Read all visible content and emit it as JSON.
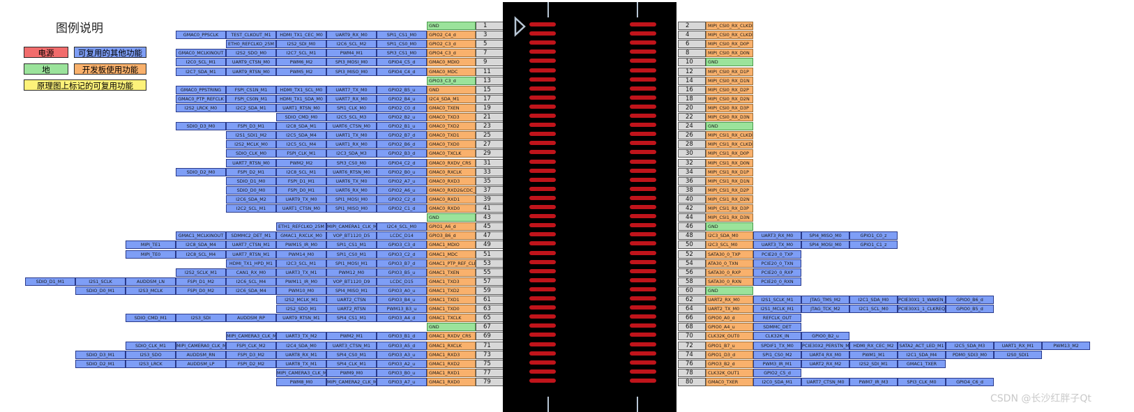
{
  "legend": {
    "title": "图例说明",
    "items": [
      {
        "label": "电源",
        "color": "#f16c6c"
      },
      {
        "label": "可复用的其他功能",
        "color": "#7e9ef6"
      },
      {
        "label": "地",
        "color": "#9be39b"
      },
      {
        "label": "开发板使用功能",
        "color": "#f9b16c"
      },
      {
        "label": "原理图上标记的可复用功能",
        "color": "#fdf27a"
      }
    ]
  },
  "watermark": "CSDN @长沙红胖子Qt",
  "odd_pins": [
    {
      "pin": "1",
      "own": "GND",
      "own_type": "green",
      "funcs": []
    },
    {
      "pin": "3",
      "own": "GPIO2_C4_d",
      "own_type": "orange",
      "funcs": [
        "SPI1_CS1_M0",
        "UART9_RX_M0",
        "HDMI_TX1_CEC_M0",
        "TEST_CLKOUT_M1",
        "GMAC0_PPSCLK"
      ]
    },
    {
      "pin": "5",
      "own": "GPIO2_C3_d",
      "own_type": "orange",
      "funcs": [
        "SPI1_CS0_M0",
        "I2C6_SCL_M2",
        "I2S2_SDI_M0",
        "ETH0_REFCLKO_25M"
      ]
    },
    {
      "pin": "7",
      "own": "GPIO4_C3_d",
      "own_type": "orange",
      "funcs": [
        "SPI3_CS1_M0",
        "PWM4_M1",
        "I2C7_SCL_M1",
        "I2S2_SDO_M0",
        "GMAC0_MCLKINOUT"
      ]
    },
    {
      "pin": "9",
      "own": "GMAC0_MDIO",
      "own_type": "orange",
      "funcs": [
        "GPIO4_C5_d",
        "SPI3_MOSI_M0",
        "PWM6_M2",
        "UART9_CTSN_M0",
        "I2C0_SCL_M1"
      ]
    },
    {
      "pin": "11",
      "own": "GMAC0_MDC",
      "own_type": "orange",
      "funcs": [
        "GPIO4_C4_d",
        "SPI3_MISO_M0",
        "PWM5_M2",
        "UART9_RTSN_M0",
        "I2C7_SDA_M1"
      ]
    },
    {
      "pin": "13",
      "own": "GPIO3_C3_d",
      "own_type": "green",
      "funcs": []
    },
    {
      "pin": "15",
      "own": "GND",
      "own_type": "orange",
      "funcs": [
        "GPIO2_B5_u",
        "UART7_TX_M0",
        "HDMI_TX1_SCL_M0",
        "FSPI_CS1N_M1",
        "GMAC0_PPSTRING"
      ]
    },
    {
      "pin": "17",
      "own": "I2C4_SDA_M1",
      "own_type": "orange",
      "funcs": [
        "GPIO2_B4_u",
        "UART7_RX_M0",
        "HDMI_TX1_SDA_M0",
        "FSPI_CS0N_M1",
        "GMAC0_PTP_REFCLK"
      ]
    },
    {
      "pin": "19",
      "own": "GMAC0_TXEN",
      "own_type": "orange",
      "funcs": [
        "GPIO2_C0_d",
        "SPI1_CLK_M0",
        "UART1_RTSN_M0",
        "I2C2_SDA_M1",
        "I2S2_LRCK_M0"
      ]
    },
    {
      "pin": "21",
      "own": "GMAC0_TXD3",
      "own_type": "orange",
      "funcs": [
        "GPIO2_B2_u",
        "I2C5_SCL_M3",
        "SDIO_CMD_M0"
      ]
    },
    {
      "pin": "23",
      "own": "GMAC0_TXD2",
      "own_type": "orange",
      "funcs": [
        "GPIO2_B1_u",
        "UART6_CTSN_M0",
        "I2C8_SDA_M1",
        "FSPI_D3_M1",
        "SDIO_D3_M0"
      ]
    },
    {
      "pin": "25",
      "own": "GMAC0_TXD1",
      "own_type": "orange",
      "funcs": [
        "GPIO2_B7_d",
        "UART1_TX_M0",
        "I2C5_SDA_M4",
        "I2S1_SDI1_M2"
      ]
    },
    {
      "pin": "27",
      "own": "GMAC0_TXD0",
      "own_type": "orange",
      "funcs": [
        "GPIO2_B6_d",
        "UART1_RX_M0",
        "I2C5_SCL_M4",
        "I2S2_MCLK_M0"
      ]
    },
    {
      "pin": "29",
      "own": "GMAC0_TXCLK",
      "own_type": "orange",
      "funcs": [
        "GPIO2_B3_d",
        "I2C3_SDA_M3",
        "FSPI_CLK_M1",
        "SDIO_CLK_M0"
      ]
    },
    {
      "pin": "31",
      "own": "GMAC0_RXDV_CRS",
      "own_type": "orange",
      "funcs": [
        "GPIO4_C2_d",
        "SPI3_CS0_M0",
        "PWM2_M2",
        "UART7_RTSN_M0"
      ]
    },
    {
      "pin": "33",
      "own": "GMAC0_RXCLK",
      "own_type": "orange",
      "funcs": [
        "GPIO2_B0_u",
        "UART6_RTSN_M0",
        "I2C8_SCL_M1",
        "FSPI_D2_M1",
        "SDIO_D2_M0"
      ]
    },
    {
      "pin": "35",
      "own": "GMAC0_RXD3",
      "own_type": "orange",
      "funcs": [
        "GPIO2_A7_u",
        "UART6_TX_M0",
        "FSPI_D1_M1",
        "SDIO_D1_M0"
      ]
    },
    {
      "pin": "37",
      "own": "GMAC0_RXD2&CDC_D10",
      "own_type": "orange",
      "funcs": [
        "GPIO2_A6_u",
        "UART6_RX_M0",
        "FSPI_D0_M1",
        "SDIO_D0_M0"
      ]
    },
    {
      "pin": "39",
      "own": "GMAC0_RXD1",
      "own_type": "orange",
      "funcs": [
        "GPIO2_C2_d",
        "SPI1_MOSI_M0",
        "UART9_TX_M0",
        "I2C6_SDA_M2"
      ]
    },
    {
      "pin": "41",
      "own": "GMAC0_RXD0",
      "own_type": "orange",
      "funcs": [
        "GPIO2_C1_d",
        "SPI1_MISO_M0",
        "UART1_CTSN_M0",
        "I2C2_SCL_M1"
      ]
    },
    {
      "pin": "43",
      "own": "GND",
      "own_type": "green",
      "funcs": []
    },
    {
      "pin": "45",
      "own": "GPIO1_A6_d",
      "own_type": "orange",
      "funcs": [
        "I2C4_SCL_M0",
        "MIPI_CAMERA1_CLK_M1",
        "ETH1_REFCLKO_25M"
      ]
    },
    {
      "pin": "47",
      "own": "GPIO3_B6_d",
      "own_type": "orange",
      "funcs": [
        "LCDC_D14",
        "VOP_BT1120_D5",
        "GMAC1_RXCLK_M0",
        "SDMMC2_DET_M1",
        "GMAC1_MCLKINOUT"
      ]
    },
    {
      "pin": "49",
      "own": "GMAC1_MDIO",
      "own_type": "orange",
      "funcs": [
        "GPIO3_C3_d",
        "SPI1_CS1_M1",
        "PWM15_IR_M0",
        "UART7_CTSN_M1",
        "I2C8_SDA_M4",
        "MIPI_TE1"
      ]
    },
    {
      "pin": "51",
      "own": "GMAC1_MDC",
      "own_type": "orange",
      "funcs": [
        "GPIO3_C2_d",
        "SPI1_CS0_M1",
        "PWM14_M0",
        "UART7_RTSN_M1",
        "I2C8_SCL_M4",
        "MIPI_TE0"
      ]
    },
    {
      "pin": "53",
      "own": "GMAC1_PTP_REF_CLK",
      "own_type": "orange",
      "funcs": [
        "GPIO3_B7_d",
        "SPI1_MOSI_M1",
        "I2C3_SCL_M1",
        "HDMI_TX1_HPD_M1"
      ]
    },
    {
      "pin": "55",
      "own": "GMAC1_TXEN",
      "own_type": "orange",
      "funcs": [
        "GPIO3_B5_u",
        "PWM12_M0",
        "UART3_TX_M1",
        "CAN1_RX_M0",
        "I2S2_SCLK_M1"
      ]
    },
    {
      "pin": "57",
      "own": "GMAC1_TXD3",
      "own_type": "orange",
      "funcs": [
        "LCDC_D15",
        "VOP_BT1120_D9",
        "PWM11_IR_M0",
        "I2C6_SCL_M4",
        "FSPI_D1_M2",
        "AUDDSM_LN",
        "I2S1_SCLK",
        "SDIO_D1_M1"
      ]
    },
    {
      "pin": "59",
      "own": "GMAC1_TXD2",
      "own_type": "orange",
      "funcs": [
        "GPIO3_A0_u",
        "SPI4_MISO_M1",
        "PWM10_M0",
        "I2C6_SDA_M4",
        "FSPI_D0_M2",
        "I2S3_MCLK",
        "SDIO_D0_M1"
      ]
    },
    {
      "pin": "61",
      "own": "GMAC1_TXD1",
      "own_type": "orange",
      "funcs": [
        "GPIO3_B4_u",
        "UART2_CTSN",
        "I2S2_MCLK_M1"
      ]
    },
    {
      "pin": "63",
      "own": "GMAC1_TXD0",
      "own_type": "orange",
      "funcs": [
        "PWM13_B3_u",
        "UART2_RTSN",
        "I2S2_SDO_M1"
      ]
    },
    {
      "pin": "65",
      "own": "GMAC1_TXCLK",
      "own_type": "orange",
      "funcs": [
        "GPIO3_A4_d",
        "SPI4_CS1_M1",
        "UART9_RTSN_M1",
        "AUDDSM_RP",
        "I2S3_SDI",
        "SDIO_CMD_M1"
      ]
    },
    {
      "pin": "67",
      "own": "GND",
      "own_type": "green",
      "funcs": []
    },
    {
      "pin": "69",
      "own": "GMAC1_RXDV_CRS",
      "own_type": "orange",
      "funcs": [
        "GPIO3_B1_d",
        "PWM2_M1",
        "UART3_TX_M2",
        "MIPI_CAMERA3_CLK_M1"
      ]
    },
    {
      "pin": "71",
      "own": "GMAC1_RXCLK",
      "own_type": "orange",
      "funcs": [
        "GPIO3_A5_d",
        "UART3_CTSN_M1",
        "I2C4_SDA_M0",
        "FSPI_CLK_M2",
        "MIPI_CAMERA0_CLK_M1",
        "SDIO_CLK_M1"
      ]
    },
    {
      "pin": "73",
      "own": "GMAC1_RXD3",
      "own_type": "orange",
      "funcs": [
        "GPIO3_A3_u",
        "SPI4_CS0_M1",
        "UART8_RX_M1",
        "FSPI_D3_M2",
        "AUDDSM_RN",
        "I2S3_SDO",
        "SDIO_D3_M1"
      ]
    },
    {
      "pin": "75",
      "own": "GMAC1_RXD2",
      "own_type": "orange",
      "funcs": [
        "GPIO3_A2_u",
        "SPI4_CLK_M1",
        "UART8_TX_M1",
        "FSPI_D2_M2",
        "AUDDSM_LP",
        "I2S3_LRCK",
        "SDIO_D2_M1"
      ]
    },
    {
      "pin": "77",
      "own": "GMAC1_RXD1",
      "own_type": "orange",
      "funcs": [
        "GPIO3_B0_u",
        "PWM9_M0",
        "MIPI_CAMERA3_CLK_M1"
      ]
    },
    {
      "pin": "79",
      "own": "GMAC1_RXD0",
      "own_type": "orange",
      "funcs": [
        "GPIO3_A7_u",
        "MIPI_CAMERA2_CLK_M1",
        "PWM8_M0"
      ]
    }
  ],
  "even_pins": [
    {
      "pin": "2",
      "own": "MIPI_CSI0_RX_CLKDP",
      "own_type": "orange",
      "funcs": []
    },
    {
      "pin": "4",
      "own": "MIPI_CSI0_RX_CLKDN",
      "own_type": "orange",
      "funcs": []
    },
    {
      "pin": "6",
      "own": "MIPI_CSI0_RX_D0P",
      "own_type": "orange",
      "funcs": []
    },
    {
      "pin": "8",
      "own": "MIPI_CSI0_RX_D0N",
      "own_type": "orange",
      "funcs": []
    },
    {
      "pin": "10",
      "own": "GND",
      "own_type": "green",
      "funcs": []
    },
    {
      "pin": "12",
      "own": "MIPI_CSI0_RX_D1P",
      "own_type": "orange",
      "funcs": []
    },
    {
      "pin": "14",
      "own": "MIPI_CSI0_RX_D1N",
      "own_type": "orange",
      "funcs": []
    },
    {
      "pin": "16",
      "own": "MIPI_CSI0_RX_D2P",
      "own_type": "orange",
      "funcs": []
    },
    {
      "pin": "18",
      "own": "MIPI_CSI0_RX_D2N",
      "own_type": "orange",
      "funcs": []
    },
    {
      "pin": "20",
      "own": "MIPI_CSI0_RX_D3P",
      "own_type": "orange",
      "funcs": []
    },
    {
      "pin": "22",
      "own": "MIPI_CSI0_RX_D3N",
      "own_type": "orange",
      "funcs": []
    },
    {
      "pin": "24",
      "own": "GND",
      "own_type": "green",
      "funcs": []
    },
    {
      "pin": "26",
      "own": "MIPI_CSI1_RX_CLKDP",
      "own_type": "orange",
      "funcs": []
    },
    {
      "pin": "28",
      "own": "MIPI_CSI1_RX_CLKDN",
      "own_type": "orange",
      "funcs": []
    },
    {
      "pin": "30",
      "own": "MIPI_CSI1_RX_D0P",
      "own_type": "orange",
      "funcs": []
    },
    {
      "pin": "32",
      "own": "MIPI_CSI1_RX_D0N",
      "own_type": "orange",
      "funcs": []
    },
    {
      "pin": "34",
      "own": "MIPI_CSI1_RX_D1P",
      "own_type": "orange",
      "funcs": []
    },
    {
      "pin": "36",
      "own": "MIPI_CSI1_RX_D1N",
      "own_type": "orange",
      "funcs": []
    },
    {
      "pin": "38",
      "own": "MIPI_CSI1_RX_D2P",
      "own_type": "orange",
      "funcs": []
    },
    {
      "pin": "40",
      "own": "MIPI_CSI1_RX_D2N",
      "own_type": "orange",
      "funcs": []
    },
    {
      "pin": "42",
      "own": "MIPI_CSI1_RX_D3P",
      "own_type": "orange",
      "funcs": []
    },
    {
      "pin": "44",
      "own": "MIPI_CSI1_RX_D3N",
      "own_type": "orange",
      "funcs": []
    },
    {
      "pin": "46",
      "own": "GND",
      "own_type": "green",
      "funcs": []
    },
    {
      "pin": "48",
      "own": "I2C3_SDA_M0",
      "own_type": "orange",
      "funcs": [
        "UART3_RX_M0",
        "SPI4_MISO_M0",
        "GPIO1_C0_z"
      ]
    },
    {
      "pin": "50",
      "own": "I2C3_SCL_M0",
      "own_type": "orange",
      "funcs": [
        "UART3_TX_M0",
        "SPI4_MOSI_M0",
        "GPIO1_C1_z"
      ]
    },
    {
      "pin": "52",
      "own": "SATA30_0_TXP",
      "own_type": "orange",
      "funcs": [
        "PCIE20_0_TXP"
      ]
    },
    {
      "pin": "54",
      "own": "ATA30_0_TXN",
      "own_type": "orange",
      "funcs": [
        "PCIE20_0_TXN"
      ]
    },
    {
      "pin": "56",
      "own": "SATA30_0_RXP",
      "own_type": "orange",
      "funcs": [
        "PCIE20_0_RXP"
      ]
    },
    {
      "pin": "58",
      "own": "SATA30_0_RXN",
      "own_type": "orange",
      "funcs": [
        "PCIE20_0_RXN"
      ]
    },
    {
      "pin": "60",
      "own": "GND",
      "own_type": "green",
      "funcs": []
    },
    {
      "pin": "62",
      "own": "UART2_RX_M0",
      "own_type": "orange",
      "funcs": [
        "I2S1_SCLK_M1",
        "JTAG_TMS_M2",
        "I2C1_SDA_M0",
        "PCIE30X1_1_WAKEN_M0",
        "GPIO0_B6_d"
      ]
    },
    {
      "pin": "64",
      "own": "UART2_TX_M0",
      "own_type": "orange",
      "funcs": [
        "I2S1_MCLK_M1",
        "JTAG_TCK_M2",
        "I2C1_SCL_M0",
        "PCIE30X1_1_CLKREQN_M0",
        "GPIO0_B5_d"
      ]
    },
    {
      "pin": "66",
      "own": "GPIO0_A0_d",
      "own_type": "orange",
      "funcs": [
        "REFCLK_OUT"
      ]
    },
    {
      "pin": "68",
      "own": "GPIO0_A4_u",
      "own_type": "orange",
      "funcs": [
        "SDMMC_DET"
      ]
    },
    {
      "pin": "70",
      "own": "CLK32K_OUT0",
      "own_type": "orange",
      "funcs": [
        "CLK32K_IN",
        "GPIO0_B2_u"
      ]
    },
    {
      "pin": "72",
      "own": "GPIO1_B7_u",
      "own_type": "orange",
      "funcs": [
        "SPDIF1_TX_M0",
        "PCIE30X2_PERSTN_M3",
        "HDMI_RX_CEC_M2",
        "SATA2_ACT_LED_M1",
        "I2C5_SDA_M3",
        "UART1_RX_M1",
        "PWM13_M2",
        "MIPI_CAMERA2_CLK_M0"
      ]
    },
    {
      "pin": "74",
      "own": "GPIO1_D3_d",
      "own_type": "orange",
      "funcs": [
        "SPI1_CS0_M2",
        "UART4_RX_M0",
        "PWM1_M1",
        "I2C1_SDA_M4",
        "PDM0_SDI3_M0",
        "I2S0_SDI1"
      ]
    },
    {
      "pin": "76",
      "own": "GPIO3_B2_d",
      "own_type": "orange",
      "funcs": [
        "PWM3_IR_M1",
        "UART2_RX_M2",
        "I2S2_SDI_M1",
        "GMAC1_TXER"
      ]
    },
    {
      "pin": "78",
      "own": "CLK32K_OUT1",
      "own_type": "orange",
      "funcs": [
        "GPIO2_C5_d"
      ]
    },
    {
      "pin": "80",
      "own": "GMAC0_TXER",
      "own_type": "orange",
      "funcs": [
        "I2C0_SDA_M1",
        "UART7_CTSN_M0",
        "PWM7_IR_M3",
        "SPI3_CLK_M0",
        "GPIO4_C6_d"
      ]
    }
  ]
}
